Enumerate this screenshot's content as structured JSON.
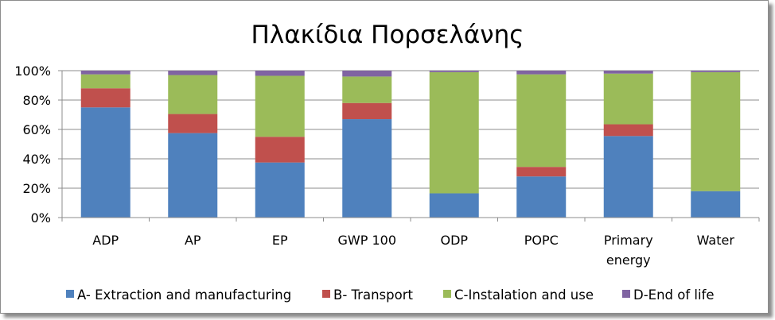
{
  "chart_data": {
    "type": "bar",
    "stacked": true,
    "percent": true,
    "title": "Πλακίδια Πορσελάνης",
    "xlabel": "",
    "ylabel": "",
    "ylim": [
      0,
      100
    ],
    "yticks": [
      "0%",
      "20%",
      "40%",
      "60%",
      "80%",
      "100%"
    ],
    "grid": true,
    "legend_position": "bottom",
    "categories": [
      [
        "ADP"
      ],
      [
        "AP"
      ],
      [
        "EP"
      ],
      [
        "GWP 100"
      ],
      [
        "ODP"
      ],
      [
        "POPC"
      ],
      [
        "Primary",
        "energy"
      ],
      [
        "Water"
      ]
    ],
    "series": [
      {
        "name": "A- Extraction and manufacturing",
        "color": "#4f81bd",
        "values": [
          75,
          57.5,
          37.5,
          67,
          16.5,
          28,
          55.5,
          18
        ]
      },
      {
        "name": "B- Transport",
        "color": "#c0504d",
        "values": [
          13,
          13,
          17.5,
          11,
          0,
          6.5,
          8,
          0
        ]
      },
      {
        "name": "C-Instalation and use",
        "color": "#9bbb59",
        "values": [
          9.5,
          26.5,
          41.5,
          18,
          82.5,
          63,
          34.5,
          81
        ]
      },
      {
        "name": "D-End of life",
        "color": "#8064a2",
        "values": [
          2.5,
          3,
          3.5,
          4,
          1,
          2.5,
          2,
          1
        ]
      }
    ]
  }
}
